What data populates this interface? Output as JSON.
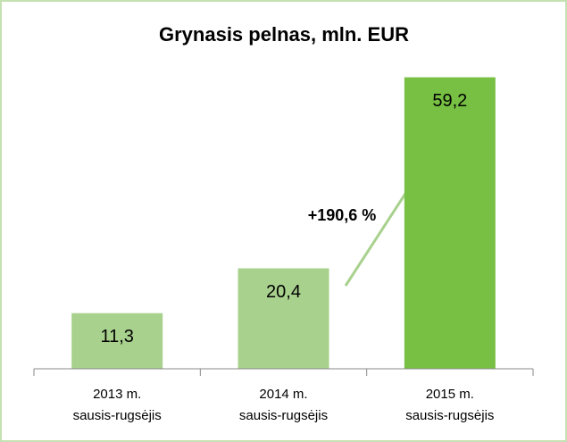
{
  "chart_data": {
    "type": "bar",
    "title": "Grynasis pelnas, mln. EUR",
    "categories": [
      "2013 m.\nsausis-rugsėjis",
      "2014 m.\nsausis-rugsėjis",
      "2015 m.\nsausis-rugsėjis"
    ],
    "values": [
      11.3,
      20.4,
      59.2
    ],
    "value_labels": [
      "11,3",
      "20,4",
      "59,2"
    ],
    "colors": [
      "#a9d18e",
      "#a9d18e",
      "#77c043"
    ],
    "ylim": [
      0,
      70
    ],
    "annotation": "+190,6 %"
  }
}
